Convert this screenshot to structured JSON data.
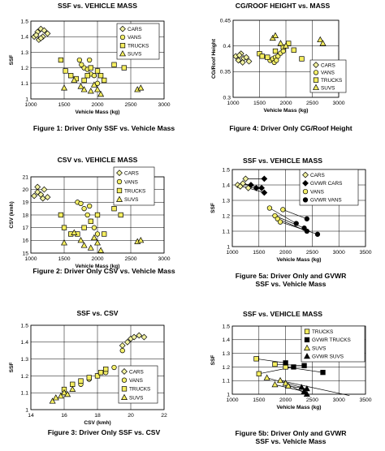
{
  "colors": {
    "cars_marker": "#F2F2A0",
    "vans_marker": "#F5F06A",
    "trucks_marker": "#F5EE60",
    "suvs_marker": "#F5EE60",
    "gvwr_marker": "#000000",
    "axis": "#000000",
    "grid": "#000000"
  },
  "captions": [
    "Figure 1: Driver Only SSF vs. Vehicle Mass",
    "Figure 4: Driver Only CG/Roof Height",
    "Figure 2: Driver Only CSV vs. Vehicle Mass",
    "Figure 5a: Driver Only and GVWR\nSSF vs. Vehicle Mass",
    "Figure 3: Driver Only SSF vs. CSV",
    "Figure 5b: Driver Only and GVWR\nSSF vs. Vehicle Mass"
  ],
  "chart_data": [
    {
      "id": "fig1",
      "type": "scatter",
      "title": "SSF vs. VEHICLE MASS",
      "xlabel": "Vehicle Mass (kg)",
      "ylabel": "SSF",
      "xlim": [
        1000,
        3000
      ],
      "ylim": [
        1.0,
        1.5
      ],
      "xticks": [
        1000,
        1500,
        2000,
        2500,
        3000
      ],
      "yticks": [
        1,
        1.1,
        1.2,
        1.3,
        1.4,
        1.5
      ],
      "ytick_decimals": 1,
      "grid": true,
      "legend": "top-right",
      "series": [
        {
          "name": "CARS",
          "marker": "diamond",
          "x": [
            1050,
            1100,
            1120,
            1150,
            1180,
            1200,
            1250,
            1150,
            1080
          ],
          "y": [
            1.4,
            1.43,
            1.38,
            1.45,
            1.4,
            1.44,
            1.42,
            1.39,
            1.41
          ]
        },
        {
          "name": "VANS",
          "marker": "circle",
          "x": [
            1730,
            1800,
            1850,
            1900,
            1950,
            2000,
            1760,
            1880
          ],
          "y": [
            1.25,
            1.2,
            1.19,
            1.16,
            1.15,
            1.1,
            1.22,
            1.25
          ]
        },
        {
          "name": "TRUCKS",
          "marker": "square",
          "x": [
            1450,
            1520,
            1600,
            1680,
            1800,
            1850,
            1900,
            2000,
            2050,
            2100,
            2250,
            2400
          ],
          "y": [
            1.25,
            1.18,
            1.15,
            1.13,
            1.12,
            1.15,
            1.2,
            1.18,
            1.15,
            1.12,
            1.22,
            1.2
          ]
        },
        {
          "name": "SUVS",
          "marker": "triangle",
          "x": [
            1500,
            1650,
            1750,
            1800,
            1900,
            1950,
            2000,
            2050,
            2600,
            2650
          ],
          "y": [
            1.07,
            1.12,
            1.08,
            1.06,
            1.05,
            1.09,
            1.06,
            1.03,
            1.06,
            1.07
          ]
        }
      ]
    },
    {
      "id": "fig4",
      "type": "scatter",
      "title": "CG/ROOF HEIGHT vs. MASS",
      "xlabel": "Vehicle Mass (kg)",
      "ylabel": "CG/Roof Height",
      "xlim": [
        1000,
        3000
      ],
      "ylim": [
        0.3,
        0.45
      ],
      "xticks": [
        1000,
        1500,
        2000,
        2500,
        3000
      ],
      "yticks": [
        0.3,
        0.35,
        0.4,
        0.45
      ],
      "ytick_decimals": 2,
      "grid": true,
      "legend": "bottom-right",
      "series": [
        {
          "name": "CARS",
          "marker": "diamond",
          "x": [
            1050,
            1100,
            1150,
            1200,
            1250,
            1300,
            1180,
            1120
          ],
          "y": [
            0.38,
            0.372,
            0.385,
            0.376,
            0.378,
            0.37,
            0.368,
            0.382
          ]
        },
        {
          "name": "VANS",
          "marker": "circle",
          "x": [
            1700,
            1750,
            1800,
            1850,
            1900,
            1950,
            1780,
            1820
          ],
          "y": [
            0.372,
            0.375,
            0.378,
            0.38,
            0.386,
            0.39,
            0.368,
            0.372
          ]
        },
        {
          "name": "TRUCKS",
          "marker": "square",
          "x": [
            1500,
            1550,
            1650,
            1800,
            1950,
            2050,
            2150,
            2300
          ],
          "y": [
            0.385,
            0.38,
            0.378,
            0.39,
            0.398,
            0.405,
            0.392,
            0.375
          ]
        },
        {
          "name": "SUVS",
          "marker": "triangle",
          "x": [
            1750,
            1800,
            1900,
            2000,
            2650,
            2700
          ],
          "y": [
            0.415,
            0.42,
            0.405,
            0.4,
            0.412,
            0.405
          ]
        }
      ]
    },
    {
      "id": "fig2",
      "type": "scatter",
      "title": "CSV vs. VEHICLE MASS",
      "xlabel": "Vehicle Mass (kg)",
      "ylabel": "CSV (kmh)",
      "xlim": [
        1000,
        3000
      ],
      "ylim": [
        15,
        21
      ],
      "xticks": [
        1000,
        1500,
        2000,
        2500,
        3000
      ],
      "yticks": [
        15,
        16,
        17,
        18,
        19,
        20,
        21
      ],
      "ytick_decimals": 0,
      "grid": true,
      "legend": "top-right",
      "series": [
        {
          "name": "CARS",
          "marker": "diamond",
          "x": [
            1050,
            1100,
            1150,
            1200,
            1100,
            1250,
            1180
          ],
          "y": [
            19.5,
            20.2,
            19.6,
            20.0,
            19.8,
            19.4,
            19.3
          ]
        },
        {
          "name": "VANS",
          "marker": "circle",
          "x": [
            1700,
            1800,
            1850,
            1900,
            1950,
            2000,
            1750,
            1880
          ],
          "y": [
            19.0,
            18.5,
            18.0,
            17.5,
            17.0,
            16.5,
            18.9,
            18.7
          ]
        },
        {
          "name": "TRUCKS",
          "marker": "square",
          "x": [
            1450,
            1500,
            1600,
            1700,
            1800,
            1900,
            2000,
            2100,
            2250,
            2350
          ],
          "y": [
            18.0,
            17.0,
            16.5,
            16.5,
            17.0,
            17.5,
            18.0,
            16.5,
            18.5,
            18.0
          ]
        },
        {
          "name": "SUVS",
          "marker": "triangle",
          "x": [
            1500,
            1650,
            1750,
            1800,
            1900,
            1950,
            2000,
            2050,
            2600,
            2650
          ],
          "y": [
            15.8,
            16.6,
            16.0,
            15.6,
            15.4,
            16.2,
            15.8,
            15.2,
            15.9,
            16.0
          ]
        }
      ]
    },
    {
      "id": "fig5a",
      "type": "scatter",
      "title": "SSF vs. VEHICLE MASS",
      "xlabel": "Vehicle Mass (kg)",
      "ylabel": "SSF",
      "xlim": [
        1000,
        3500
      ],
      "ylim": [
        1.0,
        1.5
      ],
      "xticks": [
        1000,
        1500,
        2000,
        2500,
        3000,
        3500
      ],
      "yticks": [
        1,
        1.1,
        1.2,
        1.3,
        1.4,
        1.5
      ],
      "ytick_decimals": 1,
      "grid": true,
      "legend": "top-right",
      "series": [
        {
          "name": "CARS",
          "marker": "diamond",
          "x": [
            1100,
            1150,
            1250,
            1200,
            1300
          ],
          "y": [
            1.4,
            1.39,
            1.44,
            1.41,
            1.38
          ]
        },
        {
          "name": "GVWR CARS",
          "marker": "diamond-filled",
          "x": [
            1350,
            1450,
            1600,
            1550,
            1600
          ],
          "y": [
            1.4,
            1.38,
            1.44,
            1.38,
            1.35
          ]
        },
        {
          "name": "VANS",
          "marker": "circle",
          "x": [
            1700,
            1800,
            1850,
            1900,
            1950
          ],
          "y": [
            1.25,
            1.2,
            1.18,
            1.16,
            1.24
          ]
        },
        {
          "name": "GVWR VANS",
          "marker": "circle-filled",
          "x": [
            2200,
            2350,
            2400,
            2400,
            2600
          ],
          "y": [
            1.15,
            1.12,
            1.1,
            1.18,
            1.08
          ]
        }
      ],
      "links": [
        [
          [
            1100,
            1.4
          ],
          [
            1350,
            1.4
          ]
        ],
        [
          [
            1150,
            1.39
          ],
          [
            1450,
            1.38
          ]
        ],
        [
          [
            1250,
            1.44
          ],
          [
            1600,
            1.44
          ]
        ],
        [
          [
            1200,
            1.41
          ],
          [
            1550,
            1.38
          ]
        ],
        [
          [
            1300,
            1.38
          ],
          [
            1600,
            1.35
          ]
        ],
        [
          [
            1700,
            1.25
          ],
          [
            2200,
            1.15
          ]
        ],
        [
          [
            1800,
            1.2
          ],
          [
            2350,
            1.12
          ]
        ],
        [
          [
            1850,
            1.18
          ],
          [
            2400,
            1.1
          ]
        ],
        [
          [
            1900,
            1.16
          ],
          [
            2600,
            1.08
          ]
        ],
        [
          [
            1950,
            1.24
          ],
          [
            2400,
            1.18
          ]
        ]
      ]
    },
    {
      "id": "fig3",
      "type": "scatter",
      "title": "SSF vs. CSV",
      "xlabel": "CSV (kmh)",
      "ylabel": "SSF",
      "xlim": [
        14,
        22
      ],
      "ylim": [
        1.0,
        1.5
      ],
      "xticks": [
        14,
        16,
        18,
        20,
        22
      ],
      "yticks": [
        1,
        1.1,
        1.2,
        1.3,
        1.4,
        1.5
      ],
      "ytick_decimals": 1,
      "grid": true,
      "legend": "bottom-right",
      "series": [
        {
          "name": "CARS",
          "marker": "diamond",
          "x": [
            19.5,
            19.8,
            20.0,
            20.2,
            20.5,
            20.8
          ],
          "y": [
            1.38,
            1.4,
            1.42,
            1.43,
            1.44,
            1.43
          ]
        },
        {
          "name": "VANS",
          "marker": "circle",
          "x": [
            17.0,
            17.5,
            18.0,
            18.5,
            19.0,
            19.5
          ],
          "y": [
            1.15,
            1.18,
            1.2,
            1.22,
            1.25,
            1.35
          ]
        },
        {
          "name": "TRUCKS",
          "marker": "square",
          "x": [
            16.0,
            16.5,
            17.0,
            17.5,
            18.0,
            18.5,
            18.2
          ],
          "y": [
            1.12,
            1.15,
            1.17,
            1.19,
            1.2,
            1.24,
            1.22
          ]
        },
        {
          "name": "SUVS",
          "marker": "triangle",
          "x": [
            15.3,
            15.5,
            15.8,
            16.0,
            16.2,
            16.5
          ],
          "y": [
            1.05,
            1.07,
            1.08,
            1.1,
            1.09,
            1.12
          ]
        }
      ]
    },
    {
      "id": "fig5b",
      "type": "scatter",
      "title": "SSF vs. VEHICLE MASS",
      "xlabel": "Vehicle Mass (kg)",
      "ylabel": "SSF",
      "xlim": [
        1000,
        3500
      ],
      "ylim": [
        1.0,
        1.5
      ],
      "xticks": [
        1000,
        1500,
        2000,
        2500,
        3000,
        3500
      ],
      "yticks": [
        1,
        1.1,
        1.2,
        1.3,
        1.4,
        1.5
      ],
      "ytick_decimals": 1,
      "grid": true,
      "legend": "top-right",
      "series": [
        {
          "name": "TRUCKS",
          "marker": "square",
          "x": [
            1450,
            1500,
            1800,
            2000
          ],
          "y": [
            1.26,
            1.15,
            1.22,
            1.2
          ]
        },
        {
          "name": "GVWR TRUCKS",
          "marker": "square-filled",
          "x": [
            2000,
            2150,
            2350,
            2700
          ],
          "y": [
            1.23,
            1.2,
            1.21,
            1.16
          ]
        },
        {
          "name": "SUVS",
          "marker": "triangle",
          "x": [
            1650,
            1800,
            1900,
            2000,
            2050
          ],
          "y": [
            1.12,
            1.07,
            1.1,
            1.08,
            1.06
          ]
        },
        {
          "name": "GVWR SUVS",
          "marker": "triangle-filled",
          "x": [
            2300,
            2350,
            2400,
            3200,
            2400
          ],
          "y": [
            1.05,
            1.02,
            1.0,
            0.99,
            1.04
          ]
        }
      ],
      "links": [
        [
          [
            1450,
            1.26
          ],
          [
            2000,
            1.23
          ]
        ],
        [
          [
            1500,
            1.15
          ],
          [
            2150,
            1.2
          ]
        ],
        [
          [
            1800,
            1.22
          ],
          [
            2350,
            1.21
          ]
        ],
        [
          [
            2000,
            1.2
          ],
          [
            2700,
            1.16
          ]
        ],
        [
          [
            1650,
            1.12
          ],
          [
            2300,
            1.05
          ]
        ],
        [
          [
            1800,
            1.07
          ],
          [
            2350,
            1.02
          ]
        ],
        [
          [
            1900,
            1.1
          ],
          [
            3200,
            0.99
          ]
        ],
        [
          [
            2000,
            1.08
          ],
          [
            2400,
            1.0
          ]
        ],
        [
          [
            2050,
            1.06
          ],
          [
            2400,
            1.04
          ]
        ]
      ]
    }
  ]
}
